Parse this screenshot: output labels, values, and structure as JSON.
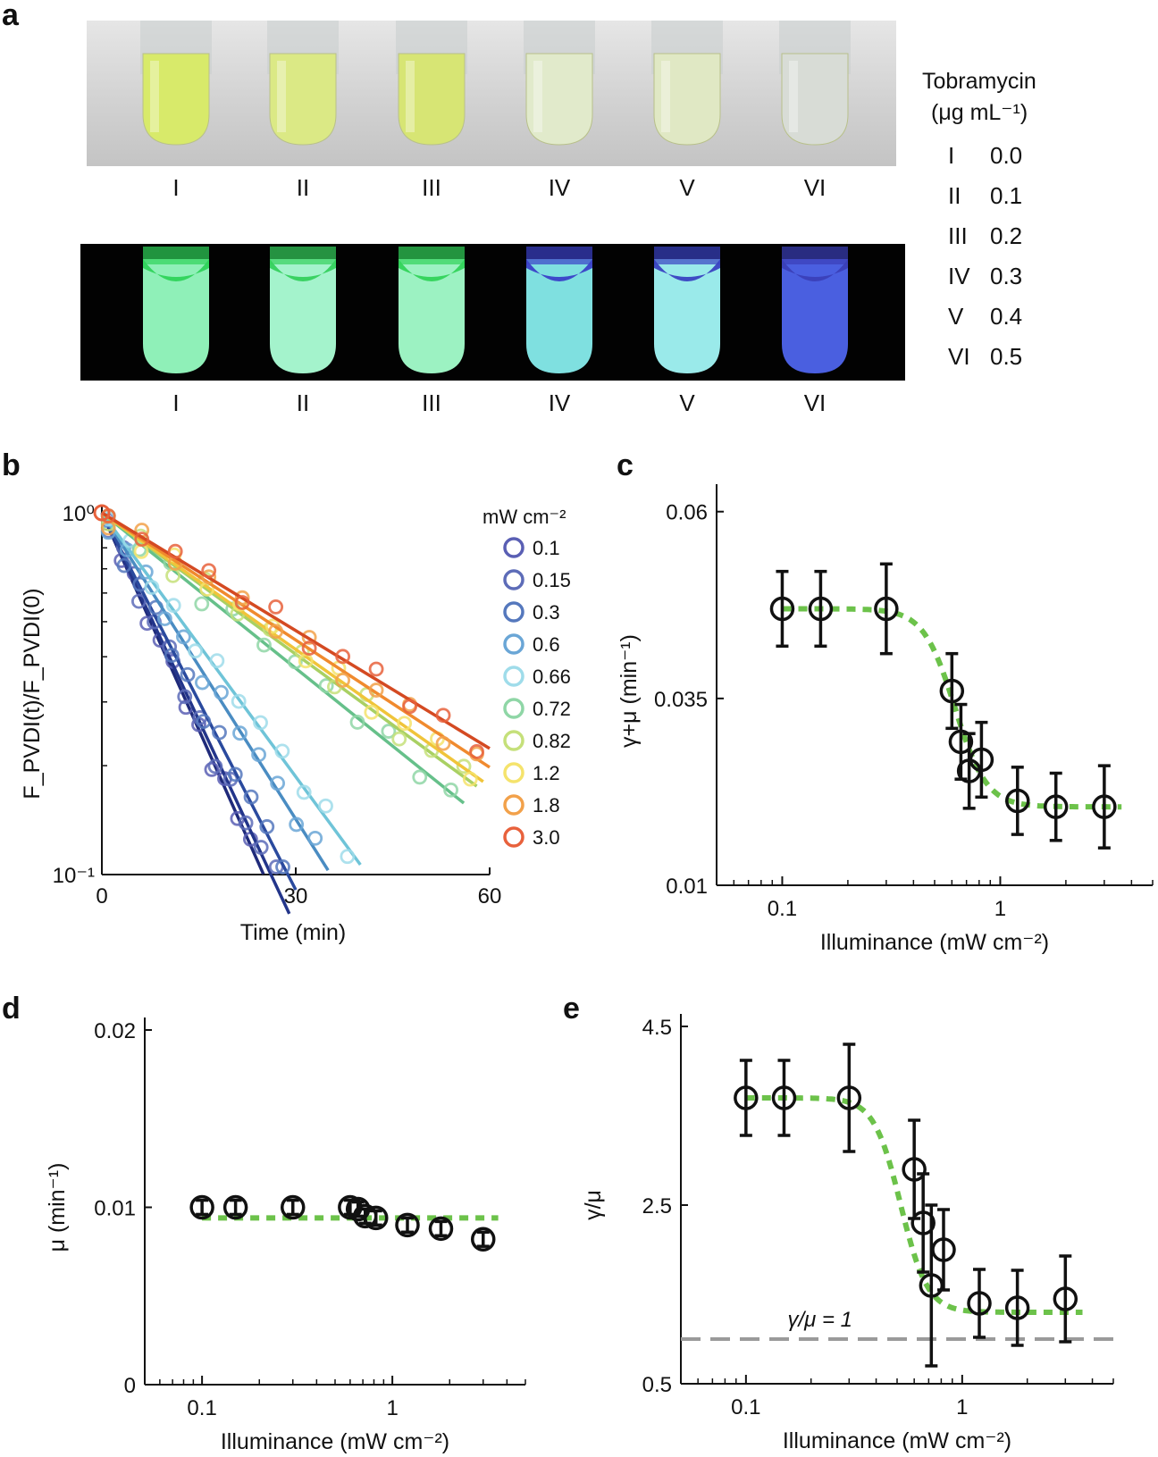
{
  "panel_labels": [
    "a",
    "b",
    "c",
    "d",
    "e"
  ],
  "panel_a": {
    "tubes": [
      "I",
      "II",
      "III",
      "IV",
      "V",
      "VI"
    ],
    "legend_title_line1": "Tobramycin",
    "legend_title_line2": "(μg mL⁻¹)",
    "concentrations": [
      {
        "label": "I",
        "value": "0.0"
      },
      {
        "label": "II",
        "value": "0.1"
      },
      {
        "label": "III",
        "value": "0.2"
      },
      {
        "label": "IV",
        "value": "0.3"
      },
      {
        "label": "V",
        "value": "0.4"
      },
      {
        "label": "VI",
        "value": "0.5"
      }
    ],
    "colors": {
      "daylight_tubes": [
        "#d8ea6a",
        "#dbe985",
        "#d7e574",
        "#e1eacb",
        "#e0e8c4",
        "#d8dcd6"
      ],
      "fluorescent_tubes": [
        "#8ff0b8",
        "#a4f3cc",
        "#9cf2c2",
        "#7fe0e0",
        "#9aeaea",
        "#4a5fe0"
      ],
      "fluorescent_rims": [
        "#2fd35a",
        "#35d05d",
        "#32d35a",
        "#3a40c8",
        "#3942c2",
        "#3a3fb8"
      ]
    }
  },
  "chart_data": [
    {
      "panel": "b",
      "type": "scatter",
      "xlabel": "Time (min)",
      "ylabel": "F_PVDI(t)/F_PVDI(0)",
      "xlim": [
        0,
        60
      ],
      "ylim": [
        0.1,
        1
      ],
      "log_y": true,
      "x_ticks": [
        "0",
        "30",
        "60"
      ],
      "y_ticks": [
        "10⁰",
        "10⁻¹"
      ],
      "legend_title": "mW cm⁻²",
      "legend_entries": [
        "0.1",
        "0.15",
        "0.3",
        "0.6",
        "0.66",
        "0.72",
        "0.82",
        "1.2",
        "1.8",
        "3.0"
      ],
      "series_colors": [
        "#5a5fb4",
        "#5d6cb8",
        "#5578bd",
        "#6aa6d6",
        "#9fdcea",
        "#8fd6a6",
        "#c5e07a",
        "#f5e36c",
        "#f2a14a",
        "#e8613c"
      ],
      "fit_colors": [
        "#1f2a7a",
        "#23358a",
        "#2a4a9e",
        "#4a8cc2",
        "#6fc4d8",
        "#66c08a",
        "#a9d063",
        "#f0c43a",
        "#f08a2e",
        "#d44a22"
      ],
      "decay_rates": [
        0.092,
        0.088,
        0.08,
        0.065,
        0.056,
        0.033,
        0.03,
        0.029,
        0.027,
        0.025
      ],
      "fit_end_x": [
        25,
        29,
        30,
        35,
        40,
        56,
        58,
        59,
        60,
        60
      ]
    },
    {
      "panel": "c",
      "type": "scatter",
      "xlabel": "Illuminance (mW cm⁻²)",
      "ylabel": "γ+μ (min⁻¹)",
      "log_x": true,
      "xlim": [
        0.05,
        5
      ],
      "ylim": [
        0.01,
        0.062
      ],
      "x_ticks": [
        "0.1",
        "1"
      ],
      "y_ticks": [
        "0.01",
        "0.035",
        "0.06"
      ],
      "points": [
        {
          "x": 0.1,
          "y": 0.047,
          "err": 0.005
        },
        {
          "x": 0.15,
          "y": 0.047,
          "err": 0.005
        },
        {
          "x": 0.3,
          "y": 0.047,
          "err": 0.006
        },
        {
          "x": 0.6,
          "y": 0.036,
          "err": 0.005
        },
        {
          "x": 0.66,
          "y": 0.0292,
          "err": 0.005
        },
        {
          "x": 0.72,
          "y": 0.0253,
          "err": 0.005
        },
        {
          "x": 0.82,
          "y": 0.0268,
          "err": 0.005
        },
        {
          "x": 1.2,
          "y": 0.0213,
          "err": 0.0045
        },
        {
          "x": 1.8,
          "y": 0.0205,
          "err": 0.0045
        },
        {
          "x": 3.0,
          "y": 0.0205,
          "err": 0.0055
        }
      ],
      "fit": {
        "high": 0.047,
        "low": 0.0205,
        "mid": 0.62,
        "n": 6,
        "color": "#6cc24a"
      }
    },
    {
      "panel": "d",
      "type": "scatter",
      "xlabel": "Illuminance (mW cm⁻²)",
      "ylabel": "μ (min⁻¹)",
      "log_x": true,
      "xlim": [
        0.05,
        5
      ],
      "ylim": [
        0,
        0.02
      ],
      "x_ticks": [
        "0.1",
        "1"
      ],
      "y_ticks": [
        "0",
        "0.01",
        "0.02"
      ],
      "points": [
        {
          "x": 0.1,
          "y": 0.01,
          "err": 0.0004
        },
        {
          "x": 0.15,
          "y": 0.01,
          "err": 0.0004
        },
        {
          "x": 0.3,
          "y": 0.01,
          "err": 0.0004
        },
        {
          "x": 0.6,
          "y": 0.01,
          "err": 0.0004
        },
        {
          "x": 0.66,
          "y": 0.0099,
          "err": 0.0004
        },
        {
          "x": 0.72,
          "y": 0.0095,
          "err": 0.0004
        },
        {
          "x": 0.82,
          "y": 0.0094,
          "err": 0.0004
        },
        {
          "x": 1.2,
          "y": 0.009,
          "err": 0.0004
        },
        {
          "x": 1.8,
          "y": 0.0088,
          "err": 0.0004
        },
        {
          "x": 3.0,
          "y": 0.0082,
          "err": 0.0004
        }
      ],
      "fit": {
        "constant": 0.0094,
        "color": "#6cc24a"
      }
    },
    {
      "panel": "e",
      "type": "scatter",
      "xlabel": "Illuminance (mW cm⁻²)",
      "ylabel": "γ/μ",
      "log_x": true,
      "xlim": [
        0.05,
        5
      ],
      "ylim": [
        0.5,
        4.5
      ],
      "x_ticks": [
        "0.1",
        "1"
      ],
      "y_ticks": [
        "0.5",
        "2.5",
        "4.5"
      ],
      "points": [
        {
          "x": 0.1,
          "y": 3.7,
          "err": 0.42
        },
        {
          "x": 0.15,
          "y": 3.7,
          "err": 0.42
        },
        {
          "x": 0.3,
          "y": 3.7,
          "err": 0.6
        },
        {
          "x": 0.6,
          "y": 2.9,
          "err": 0.55
        },
        {
          "x": 0.66,
          "y": 2.3,
          "err": 0.55
        },
        {
          "x": 0.72,
          "y": 1.6,
          "err": 0.9
        },
        {
          "x": 0.82,
          "y": 2.0,
          "err": 0.45
        },
        {
          "x": 1.2,
          "y": 1.4,
          "err": 0.38
        },
        {
          "x": 1.8,
          "y": 1.35,
          "err": 0.42
        },
        {
          "x": 3.0,
          "y": 1.45,
          "err": 0.48
        }
      ],
      "fit": {
        "high": 3.7,
        "low": 1.3,
        "mid": 0.52,
        "n": 7,
        "color": "#6cc24a"
      },
      "reference_line": {
        "y": 1,
        "label": "γ/μ = 1",
        "color": "#9a9a9a"
      }
    }
  ]
}
